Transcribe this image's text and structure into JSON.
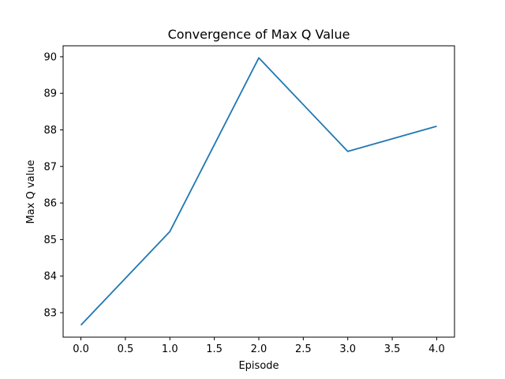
{
  "chart_data": {
    "type": "line",
    "title": "Convergence of Max Q Value",
    "xlabel": "Episode",
    "ylabel": "Max Q value",
    "xlim": [
      -0.2,
      4.2
    ],
    "ylim": [
      82.33,
      90.3
    ],
    "x_ticks": [
      0.0,
      0.5,
      1.0,
      1.5,
      2.0,
      2.5,
      3.0,
      3.5,
      4.0
    ],
    "x_tick_labels": [
      "0.0",
      "0.5",
      "1.0",
      "1.5",
      "2.0",
      "2.5",
      "3.0",
      "3.5",
      "4.0"
    ],
    "y_ticks": [
      83,
      84,
      85,
      86,
      87,
      88,
      89,
      90
    ],
    "y_tick_labels": [
      "83",
      "84",
      "85",
      "86",
      "87",
      "88",
      "89",
      "90"
    ],
    "grid": false,
    "series": [
      {
        "color": "#1f77b4",
        "x": [
          0,
          1,
          2,
          3,
          4
        ],
        "values": [
          82.66,
          85.22,
          89.97,
          87.41,
          88.1
        ]
      }
    ]
  }
}
